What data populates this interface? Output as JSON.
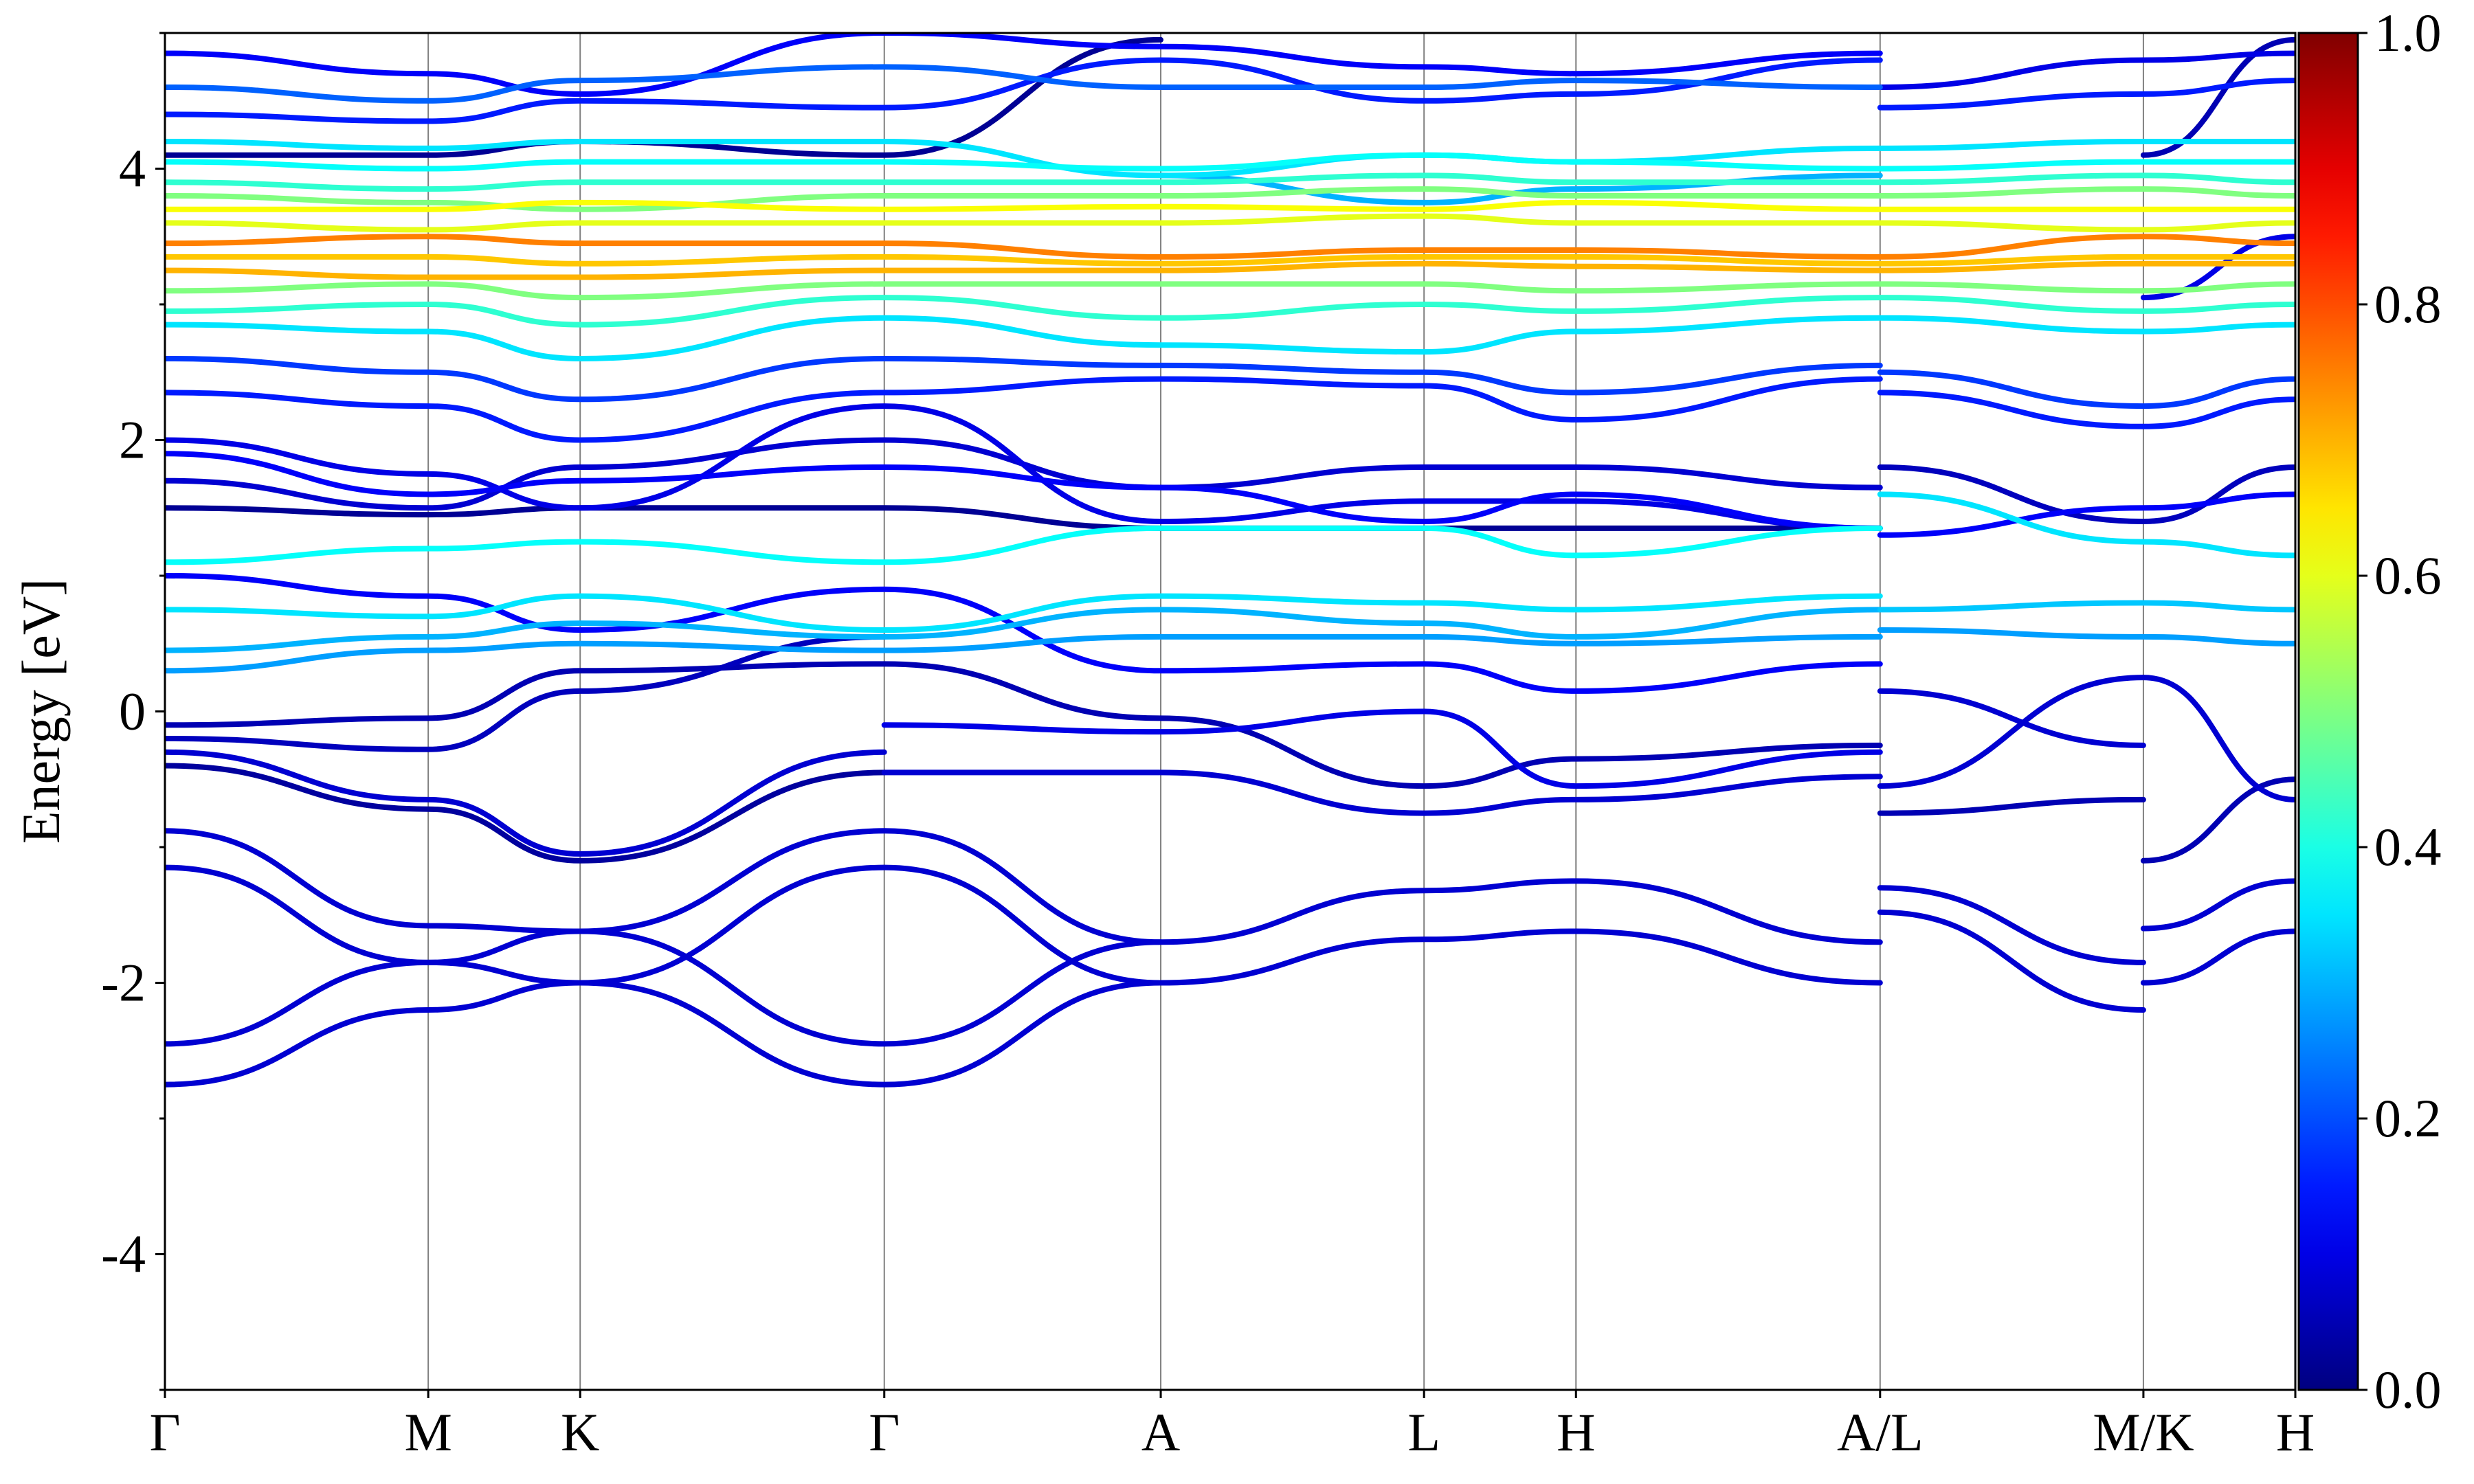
{
  "chart_data": {
    "type": "line",
    "subtype": "projected band structure",
    "ylabel": "Energy [eV]",
    "xlabel": "",
    "ylim": [
      -5,
      5
    ],
    "y_ticks": [
      -4,
      -2,
      0,
      2,
      4
    ],
    "y_tick_labels": [
      "-4",
      "-2",
      "0",
      "2",
      "4"
    ],
    "k_labels": [
      "Γ",
      "M",
      "K",
      "Γ",
      "A",
      "L",
      "H",
      "A/L",
      "M/K",
      "H"
    ],
    "k_positions": [
      0,
      1,
      1.577,
      2.732,
      3.782,
      4.782,
      5.359,
      6.514,
      7.514,
      8.091
    ],
    "grid": "vertical lines at high-symmetry points",
    "colorbar": {
      "label": "",
      "range": [
        0,
        1
      ],
      "ticks": [
        0.0,
        0.2,
        0.4,
        0.6,
        0.8,
        1.0
      ],
      "tick_labels": [
        "0.0",
        "0.2",
        "0.4",
        "0.6",
        "0.8",
        "1.0"
      ],
      "colormap": "jet"
    },
    "series": [
      {
        "x": [
          0,
          1,
          1.577,
          2.732,
          3.782,
          4.782,
          5.359,
          6.514
        ],
        "y": [
          -2.75,
          -2.2,
          -2.0,
          -2.75,
          -2.0,
          -1.68,
          -1.62,
          -2.0
        ],
        "w": 0.08
      },
      {
        "x": [
          0,
          1,
          1.577,
          2.732,
          3.782,
          4.782,
          5.359,
          6.514
        ],
        "y": [
          -2.45,
          -1.85,
          -1.62,
          -2.45,
          -1.7,
          -1.32,
          -1.25,
          -1.7
        ],
        "w": 0.08
      },
      {
        "x": [
          0,
          1,
          1.577,
          2.732,
          3.782
        ],
        "y": [
          -1.15,
          -1.85,
          -2.0,
          -1.15,
          -2.0
        ],
        "w": 0.08
      },
      {
        "x": [
          0,
          1,
          1.577,
          2.732,
          3.782
        ],
        "y": [
          -0.88,
          -1.58,
          -1.62,
          -0.88,
          -1.7
        ],
        "w": 0.08
      },
      {
        "x": [
          6.514,
          7.514
        ],
        "y": [
          -1.3,
          -1.85
        ],
        "w": 0.08
      },
      {
        "x": [
          6.514,
          7.514
        ],
        "y": [
          -1.48,
          -2.2
        ],
        "w": 0.08
      },
      {
        "x": [
          7.514,
          8.091
        ],
        "y": [
          -1.6,
          -1.25
        ],
        "w": 0.08
      },
      {
        "x": [
          7.514,
          8.091
        ],
        "y": [
          -2.0,
          -1.62
        ],
        "w": 0.08
      },
      {
        "x": [
          0,
          1,
          1.577,
          2.732
        ],
        "y": [
          -0.4,
          -0.72,
          -1.1,
          -0.45
        ],
        "w": 0.03
      },
      {
        "x": [
          0,
          1,
          1.577,
          2.732
        ],
        "y": [
          -0.3,
          -0.65,
          -1.05,
          -0.3
        ],
        "w": 0.08
      },
      {
        "x": [
          0,
          1,
          1.577,
          2.732
        ],
        "y": [
          -0.2,
          -0.28,
          0.15,
          0.55
        ],
        "w": 0.06
      },
      {
        "x": [
          0,
          1,
          1.577,
          2.732,
          3.782,
          4.782,
          5.359,
          6.514
        ],
        "y": [
          -0.1,
          -0.05,
          0.3,
          0.35,
          -0.05,
          -0.55,
          -0.35,
          -0.25
        ],
        "w": 0.05
      },
      {
        "x": [
          2.732,
          3.782,
          4.782,
          5.359,
          6.514
        ],
        "y": [
          -0.45,
          -0.45,
          -0.75,
          -0.65,
          -0.48
        ],
        "w": 0.08
      },
      {
        "x": [
          2.732,
          3.782,
          4.782,
          5.359,
          6.514
        ],
        "y": [
          -0.1,
          -0.15,
          0.0,
          -0.55,
          -0.3
        ],
        "w": 0.1
      },
      {
        "x": [
          6.514,
          7.514
        ],
        "y": [
          -0.75,
          -0.65
        ],
        "w": 0.05
      },
      {
        "x": [
          6.514,
          7.514
        ],
        "y": [
          -0.55,
          0.25
        ],
        "w": 0.08
      },
      {
        "x": [
          6.514,
          7.514
        ],
        "y": [
          0.15,
          -0.25
        ],
        "w": 0.08
      },
      {
        "x": [
          7.514,
          8.091
        ],
        "y": [
          -1.1,
          -0.5
        ],
        "w": 0.05
      },
      {
        "x": [
          7.514,
          8.091
        ],
        "y": [
          0.25,
          -0.65
        ],
        "w": 0.08
      },
      {
        "x": [
          0,
          1,
          1.577,
          2.732,
          3.782,
          4.782,
          5.359,
          6.514
        ],
        "y": [
          0.3,
          0.45,
          0.5,
          0.45,
          0.55,
          0.55,
          0.5,
          0.55
        ],
        "w": 0.28
      },
      {
        "x": [
          0,
          1,
          1.577,
          2.732,
          3.782,
          4.782,
          5.359,
          6.514
        ],
        "y": [
          0.45,
          0.55,
          0.65,
          0.55,
          0.75,
          0.65,
          0.55,
          0.75
        ],
        "w": 0.3
      },
      {
        "x": [
          0,
          1,
          1.577,
          2.732,
          3.782,
          4.782,
          5.359,
          6.514
        ],
        "y": [
          0.75,
          0.7,
          0.85,
          0.6,
          0.85,
          0.8,
          0.75,
          0.85
        ],
        "w": 0.35
      },
      {
        "x": [
          0,
          1,
          1.577,
          2.732,
          3.782,
          4.782,
          5.359,
          6.514
        ],
        "y": [
          1.0,
          0.85,
          0.6,
          0.9,
          0.3,
          0.35,
          0.15,
          0.35
        ],
        "w": 0.12
      },
      {
        "x": [
          0,
          1,
          1.577,
          2.732,
          3.782,
          4.782,
          5.359,
          6.514
        ],
        "y": [
          1.1,
          1.2,
          1.25,
          1.1,
          1.35,
          1.35,
          1.15,
          1.35
        ],
        "w": 0.38
      },
      {
        "x": [
          6.514,
          7.514,
          8.091
        ],
        "y": [
          0.6,
          0.55,
          0.5
        ],
        "w": 0.28
      },
      {
        "x": [
          6.514,
          7.514,
          8.091
        ],
        "y": [
          0.75,
          0.8,
          0.75
        ],
        "w": 0.32
      },
      {
        "x": [
          6.514,
          7.514,
          8.091
        ],
        "y": [
          1.6,
          1.25,
          1.15
        ],
        "w": 0.35
      },
      {
        "x": [
          0,
          1,
          1.577,
          2.732,
          3.782,
          4.782,
          5.359,
          6.514
        ],
        "y": [
          1.5,
          1.45,
          1.5,
          1.5,
          1.35,
          1.35,
          1.35,
          1.35
        ],
        "w": 0.02
      },
      {
        "x": [
          0,
          1,
          1.577,
          2.732,
          3.782,
          4.782,
          5.359,
          6.514
        ],
        "y": [
          1.7,
          1.5,
          1.8,
          2.0,
          1.65,
          1.8,
          1.8,
          1.65
        ],
        "w": 0.08
      },
      {
        "x": [
          0,
          1,
          1.577,
          2.732,
          3.782,
          4.782,
          5.359,
          6.514
        ],
        "y": [
          2.0,
          1.75,
          1.5,
          2.25,
          1.4,
          1.55,
          1.55,
          1.35
        ],
        "w": 0.1
      },
      {
        "x": [
          0,
          1,
          1.577,
          2.732,
          3.782,
          4.782,
          5.359,
          6.514
        ],
        "y": [
          1.9,
          1.6,
          1.7,
          1.8,
          1.65,
          1.4,
          1.6,
          1.35
        ],
        "w": 0.12
      },
      {
        "x": [
          6.514,
          7.514,
          8.091
        ],
        "y": [
          1.8,
          1.4,
          1.8
        ],
        "w": 0.06
      },
      {
        "x": [
          6.514,
          7.514,
          8.091
        ],
        "y": [
          1.3,
          1.5,
          1.6
        ],
        "w": 0.12
      },
      {
        "x": [
          0,
          1,
          1.577,
          2.732,
          3.782,
          4.782,
          5.359,
          6.514
        ],
        "y": [
          2.35,
          2.25,
          2.0,
          2.35,
          2.45,
          2.4,
          2.15,
          2.45
        ],
        "w": 0.15
      },
      {
        "x": [
          0,
          1,
          1.577,
          2.732,
          3.782,
          4.782,
          5.359,
          6.514
        ],
        "y": [
          2.6,
          2.5,
          2.3,
          2.6,
          2.55,
          2.5,
          2.35,
          2.55
        ],
        "w": 0.18
      },
      {
        "x": [
          6.514,
          7.514,
          8.091
        ],
        "y": [
          2.35,
          2.1,
          2.3
        ],
        "w": 0.15
      },
      {
        "x": [
          6.514,
          7.514,
          8.091
        ],
        "y": [
          2.5,
          2.25,
          2.45
        ],
        "w": 0.18
      },
      {
        "x": [
          0,
          1,
          1.577,
          2.732,
          3.782,
          4.782,
          5.359,
          6.514,
          7.514,
          8.091
        ],
        "y": [
          2.85,
          2.8,
          2.6,
          2.9,
          2.7,
          2.65,
          2.8,
          2.9,
          2.8,
          2.85
        ],
        "w": 0.35
      },
      {
        "x": [
          0,
          1,
          1.577,
          2.732,
          3.782,
          4.782,
          5.359,
          6.514,
          7.514,
          8.091
        ],
        "y": [
          2.95,
          3.0,
          2.85,
          3.05,
          2.9,
          3.0,
          2.95,
          3.05,
          2.95,
          3.0
        ],
        "w": 0.42
      },
      {
        "x": [
          0,
          1,
          1.577,
          2.732,
          3.782,
          4.782,
          5.359,
          6.514,
          7.514,
          8.091
        ],
        "y": [
          3.1,
          3.15,
          3.05,
          3.15,
          3.15,
          3.15,
          3.1,
          3.15,
          3.1,
          3.15
        ],
        "w": 0.5
      },
      {
        "x": [
          0,
          1,
          1.577,
          2.732,
          3.782,
          4.782,
          5.359,
          6.514,
          7.514,
          8.091
        ],
        "y": [
          3.25,
          3.2,
          3.2,
          3.25,
          3.25,
          3.3,
          3.28,
          3.25,
          3.3,
          3.3
        ],
        "w": 0.7
      },
      {
        "x": [
          0,
          1,
          1.577,
          2.732,
          3.782,
          4.782,
          5.359,
          6.514,
          7.514,
          8.091
        ],
        "y": [
          3.35,
          3.35,
          3.3,
          3.35,
          3.3,
          3.35,
          3.35,
          3.3,
          3.35,
          3.35
        ],
        "w": 0.68
      },
      {
        "x": [
          0,
          1,
          1.577,
          2.732,
          3.782,
          4.782,
          5.359,
          6.514,
          7.514,
          8.091
        ],
        "y": [
          3.45,
          3.5,
          3.45,
          3.45,
          3.35,
          3.4,
          3.4,
          3.35,
          3.5,
          3.45
        ],
        "w": 0.75
      },
      {
        "x": [
          0,
          1,
          1.577,
          2.732,
          3.782,
          4.782,
          5.359,
          6.514,
          7.514,
          8.091
        ],
        "y": [
          3.6,
          3.55,
          3.6,
          3.6,
          3.6,
          3.65,
          3.6,
          3.6,
          3.55,
          3.6
        ],
        "w": 0.6
      },
      {
        "x": [
          0,
          1,
          1.577,
          2.732,
          3.782,
          4.782,
          5.359,
          6.514,
          7.514,
          8.091
        ],
        "y": [
          3.7,
          3.7,
          3.75,
          3.7,
          3.72,
          3.7,
          3.75,
          3.7,
          3.7,
          3.7
        ],
        "w": 0.62
      },
      {
        "x": [
          0,
          1,
          1.577,
          2.732,
          3.782,
          4.782,
          5.359,
          6.514,
          7.514,
          8.091
        ],
        "y": [
          3.8,
          3.75,
          3.7,
          3.8,
          3.8,
          3.85,
          3.8,
          3.8,
          3.85,
          3.8
        ],
        "w": 0.5
      },
      {
        "x": [
          0,
          1,
          1.577,
          2.732,
          3.782,
          4.782,
          5.359,
          6.514,
          7.514,
          8.091
        ],
        "y": [
          3.9,
          3.85,
          3.9,
          3.9,
          3.9,
          3.95,
          3.9,
          3.9,
          3.95,
          3.9
        ],
        "w": 0.42
      },
      {
        "x": [
          0,
          1,
          1.577,
          2.732,
          3.782,
          4.782,
          5.359,
          6.514,
          7.514,
          8.091
        ],
        "y": [
          4.05,
          4.0,
          4.05,
          4.05,
          4.0,
          4.1,
          4.05,
          4.0,
          4.05,
          4.05
        ],
        "w": 0.38
      },
      {
        "x": [
          0,
          1,
          1.577,
          2.732,
          3.782,
          4.782,
          5.359,
          6.514,
          7.514,
          8.091
        ],
        "y": [
          4.2,
          4.15,
          4.2,
          4.2,
          3.95,
          4.1,
          4.05,
          4.15,
          4.2,
          4.2
        ],
        "w": 0.35
      },
      {
        "x": [
          0,
          1,
          1.577,
          2.732,
          3.782
        ],
        "y": [
          4.1,
          4.1,
          4.2,
          4.1,
          4.95
        ],
        "w": 0.02
      },
      {
        "x": [
          3.782,
          4.782,
          5.359,
          6.514
        ],
        "y": [
          3.95,
          3.75,
          3.85,
          3.95
        ],
        "w": 0.3
      },
      {
        "x": [
          0,
          1,
          1.577,
          2.732,
          3.782,
          4.782,
          5.359,
          6.514
        ],
        "y": [
          4.4,
          4.35,
          4.5,
          4.45,
          4.8,
          4.5,
          4.55,
          4.8
        ],
        "w": 0.15
      },
      {
        "x": [
          0,
          1,
          1.577,
          2.732,
          3.782,
          4.782,
          5.359,
          6.514
        ],
        "y": [
          4.6,
          4.5,
          4.65,
          4.75,
          4.6,
          4.6,
          4.65,
          4.6
        ],
        "w": 0.22
      },
      {
        "x": [
          0,
          1,
          1.577,
          2.732,
          3.782,
          4.782,
          5.359,
          6.514
        ],
        "y": [
          4.85,
          4.7,
          4.55,
          5.0,
          4.9,
          4.75,
          4.7,
          4.85
        ],
        "w": 0.12
      },
      {
        "x": [
          6.514,
          7.514,
          8.091
        ],
        "y": [
          4.45,
          4.55,
          4.65
        ],
        "w": 0.15
      },
      {
        "x": [
          6.514,
          7.514,
          8.091
        ],
        "y": [
          4.6,
          4.8,
          4.85
        ],
        "w": 0.1
      },
      {
        "x": [
          7.514,
          8.091
        ],
        "y": [
          3.05,
          3.5
        ],
        "w": 0.1
      },
      {
        "x": [
          7.514,
          8.091
        ],
        "y": [
          4.1,
          4.95
        ],
        "w": 0.05
      }
    ]
  }
}
